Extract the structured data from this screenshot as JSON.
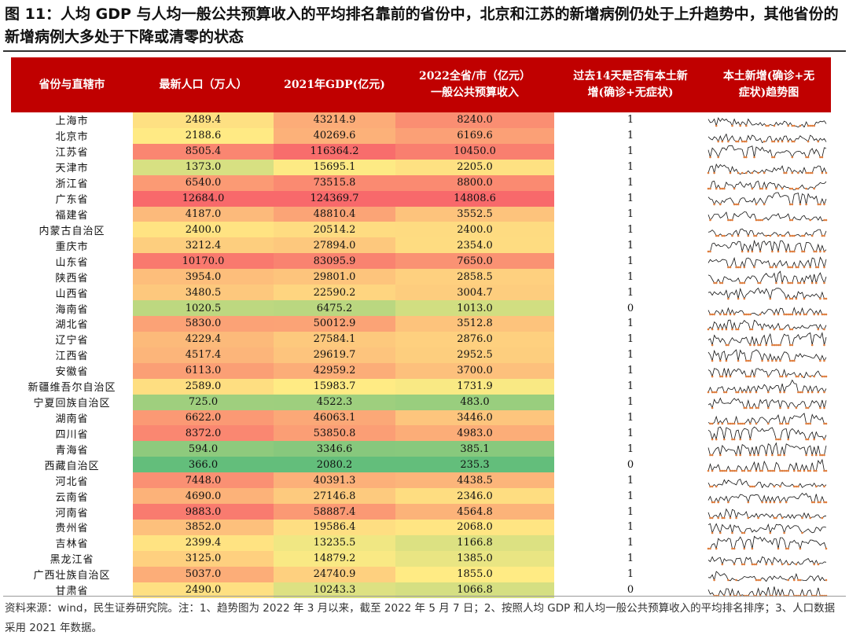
{
  "title": "图 11：人均 GDP 与人均一般公共预算收入的平均排名靠前的省份中，北京和江苏的新增病例仍处于上升趋势中，其他省份的新增病例大多处于下降或清零的状态",
  "headers": {
    "province": "省份与直辖市",
    "population": "最新人口（万人）",
    "gdp": "2021年GDP(亿元)",
    "revenue_l1": "2022全省/市（亿元）",
    "revenue_l2": "一般公共预算收入",
    "cases_l1": "过去14天是否有本土新",
    "cases_l2": "增(确诊+无症状)",
    "trend_l1": "本土新增(确诊+无",
    "trend_l2": "症状)趋势图"
  },
  "rows": [
    {
      "province": "上海市",
      "population": "2489.4",
      "gdp": "43214.9",
      "revenue": "8240.0",
      "new_cases": "1",
      "pop_val": 2489.4,
      "gdp_val": 43214.9,
      "rev_val": 8240.0
    },
    {
      "province": "北京市",
      "population": "2188.6",
      "gdp": "40269.6",
      "revenue": "6169.6",
      "new_cases": "1",
      "pop_val": 2188.6,
      "gdp_val": 40269.6,
      "rev_val": 6169.6
    },
    {
      "province": "江苏省",
      "population": "8505.4",
      "gdp": "116364.2",
      "revenue": "10450.0",
      "new_cases": "1",
      "pop_val": 8505.4,
      "gdp_val": 116364.2,
      "rev_val": 10450.0
    },
    {
      "province": "天津市",
      "population": "1373.0",
      "gdp": "15695.1",
      "revenue": "2205.0",
      "new_cases": "1",
      "pop_val": 1373.0,
      "gdp_val": 15695.1,
      "rev_val": 2205.0
    },
    {
      "province": "浙江省",
      "population": "6540.0",
      "gdp": "73515.8",
      "revenue": "8800.0",
      "new_cases": "1",
      "pop_val": 6540.0,
      "gdp_val": 73515.8,
      "rev_val": 8800.0
    },
    {
      "province": "广东省",
      "population": "12684.0",
      "gdp": "124369.7",
      "revenue": "14808.6",
      "new_cases": "1",
      "pop_val": 12684.0,
      "gdp_val": 124369.7,
      "rev_val": 14808.6
    },
    {
      "province": "福建省",
      "population": "4187.0",
      "gdp": "48810.4",
      "revenue": "3552.5",
      "new_cases": "1",
      "pop_val": 4187.0,
      "gdp_val": 48810.4,
      "rev_val": 3552.5
    },
    {
      "province": "内蒙古自治区",
      "population": "2400.0",
      "gdp": "20514.2",
      "revenue": "2400.0",
      "new_cases": "1",
      "pop_val": 2400.0,
      "gdp_val": 20514.2,
      "rev_val": 2400.0
    },
    {
      "province": "重庆市",
      "population": "3212.4",
      "gdp": "27894.0",
      "revenue": "2354.0",
      "new_cases": "1",
      "pop_val": 3212.4,
      "gdp_val": 27894.0,
      "rev_val": 2354.0
    },
    {
      "province": "山东省",
      "population": "10170.0",
      "gdp": "83095.9",
      "revenue": "7650.0",
      "new_cases": "1",
      "pop_val": 10170.0,
      "gdp_val": 83095.9,
      "rev_val": 7650.0
    },
    {
      "province": "陕西省",
      "population": "3954.0",
      "gdp": "29801.0",
      "revenue": "2858.5",
      "new_cases": "1",
      "pop_val": 3954.0,
      "gdp_val": 29801.0,
      "rev_val": 2858.5
    },
    {
      "province": "山西省",
      "population": "3480.5",
      "gdp": "22590.2",
      "revenue": "3004.7",
      "new_cases": "1",
      "pop_val": 3480.5,
      "gdp_val": 22590.2,
      "rev_val": 3004.7
    },
    {
      "province": "海南省",
      "population": "1020.5",
      "gdp": "6475.2",
      "revenue": "1013.0",
      "new_cases": "0",
      "pop_val": 1020.5,
      "gdp_val": 6475.2,
      "rev_val": 1013.0
    },
    {
      "province": "湖北省",
      "population": "5830.0",
      "gdp": "50012.9",
      "revenue": "3512.8",
      "new_cases": "1",
      "pop_val": 5830.0,
      "gdp_val": 50012.9,
      "rev_val": 3512.8
    },
    {
      "province": "辽宁省",
      "population": "4229.4",
      "gdp": "27584.1",
      "revenue": "2876.0",
      "new_cases": "1",
      "pop_val": 4229.4,
      "gdp_val": 27584.1,
      "rev_val": 2876.0
    },
    {
      "province": "江西省",
      "population": "4517.4",
      "gdp": "29619.7",
      "revenue": "2952.5",
      "new_cases": "1",
      "pop_val": 4517.4,
      "gdp_val": 29619.7,
      "rev_val": 2952.5
    },
    {
      "province": "安徽省",
      "population": "6113.0",
      "gdp": "42959.2",
      "revenue": "3700.0",
      "new_cases": "1",
      "pop_val": 6113.0,
      "gdp_val": 42959.2,
      "rev_val": 3700.0
    },
    {
      "province": "新疆维吾尔自治区",
      "population": "2589.0",
      "gdp": "15983.7",
      "revenue": "1731.9",
      "new_cases": "1",
      "pop_val": 2589.0,
      "gdp_val": 15983.7,
      "rev_val": 1731.9
    },
    {
      "province": "宁夏回族自治区",
      "population": "725.0",
      "gdp": "4522.3",
      "revenue": "483.0",
      "new_cases": "1",
      "pop_val": 725.0,
      "gdp_val": 4522.3,
      "rev_val": 483.0
    },
    {
      "province": "湖南省",
      "population": "6622.0",
      "gdp": "46063.1",
      "revenue": "3446.0",
      "new_cases": "1",
      "pop_val": 6622.0,
      "gdp_val": 46063.1,
      "rev_val": 3446.0
    },
    {
      "province": "四川省",
      "population": "8372.0",
      "gdp": "53850.8",
      "revenue": "4983.0",
      "new_cases": "1",
      "pop_val": 8372.0,
      "gdp_val": 53850.8,
      "rev_val": 4983.0
    },
    {
      "province": "青海省",
      "population": "594.0",
      "gdp": "3346.6",
      "revenue": "385.1",
      "new_cases": "1",
      "pop_val": 594.0,
      "gdp_val": 3346.6,
      "rev_val": 385.1
    },
    {
      "province": "西藏自治区",
      "population": "366.0",
      "gdp": "2080.2",
      "revenue": "235.3",
      "new_cases": "0",
      "pop_val": 366.0,
      "gdp_val": 2080.2,
      "rev_val": 235.3
    },
    {
      "province": "河北省",
      "population": "7448.0",
      "gdp": "40391.3",
      "revenue": "4438.5",
      "new_cases": "1",
      "pop_val": 7448.0,
      "gdp_val": 40391.3,
      "rev_val": 4438.5
    },
    {
      "province": "云南省",
      "population": "4690.0",
      "gdp": "27146.8",
      "revenue": "2346.0",
      "new_cases": "1",
      "pop_val": 4690.0,
      "gdp_val": 27146.8,
      "rev_val": 2346.0
    },
    {
      "province": "河南省",
      "population": "9883.0",
      "gdp": "58887.4",
      "revenue": "4564.8",
      "new_cases": "1",
      "pop_val": 9883.0,
      "gdp_val": 58887.4,
      "rev_val": 4564.8
    },
    {
      "province": "贵州省",
      "population": "3852.0",
      "gdp": "19586.4",
      "revenue": "2068.0",
      "new_cases": "1",
      "pop_val": 3852.0,
      "gdp_val": 19586.4,
      "rev_val": 2068.0
    },
    {
      "province": "吉林省",
      "population": "2399.4",
      "gdp": "13235.5",
      "revenue": "1166.8",
      "new_cases": "1",
      "pop_val": 2399.4,
      "gdp_val": 13235.5,
      "rev_val": 1166.8
    },
    {
      "province": "黑龙江省",
      "population": "3125.0",
      "gdp": "14879.2",
      "revenue": "1385.0",
      "new_cases": "1",
      "pop_val": 3125.0,
      "gdp_val": 14879.2,
      "rev_val": 1385.0
    },
    {
      "province": "广西壮族自治区",
      "population": "5037.0",
      "gdp": "24740.9",
      "revenue": "1855.0",
      "new_cases": "1",
      "pop_val": 5037.0,
      "gdp_val": 24740.9,
      "rev_val": 1855.0
    },
    {
      "province": "甘肃省",
      "population": "2490.0",
      "gdp": "10243.3",
      "revenue": "1066.8",
      "new_cases": "0",
      "pop_val": 2490.0,
      "gdp_val": 10243.3,
      "rev_val": 1066.8
    }
  ],
  "colors": {
    "header_bg": "#c00000",
    "scale_low": "#63be7b",
    "scale_mid": "#ffeb84",
    "scale_high": "#f8696b",
    "sparkline": "#111111",
    "sparkline_zero": "#e07b39"
  },
  "footnote": "资料来源：wind，民生证券研究院。注：1、趋势图为 2022 年 3 月以来，截至 2022 年 5 月 7 日；2、按照人均 GDP 和人均一般公共预算收入的平均排名排序；3、人口数据采用 2021 年数据。"
}
